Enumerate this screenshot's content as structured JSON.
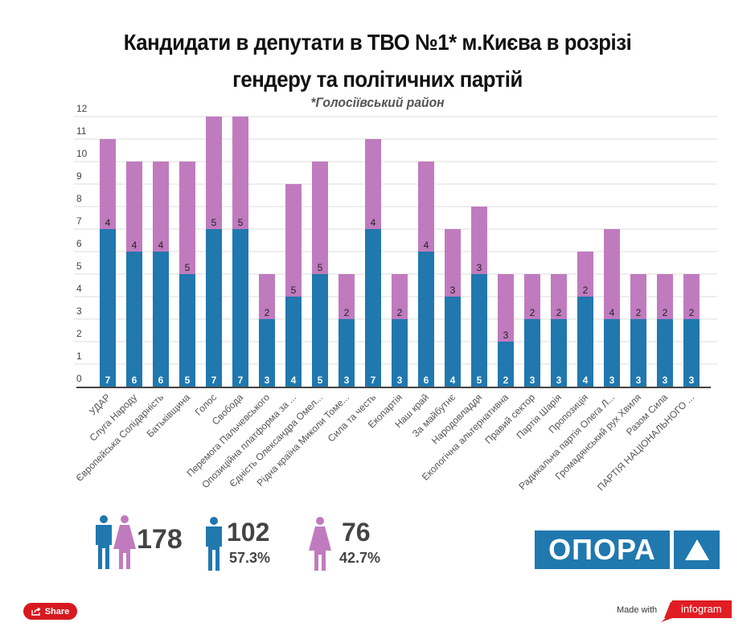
{
  "header": {
    "title_line1": "Кандидати в депутати в ТВО №1* м.Києва в розрізі",
    "title_line2": "гендеру та політичних партій",
    "subtitle": "*Голосіївський район"
  },
  "colors": {
    "male": "#2078ae",
    "female": "#c07bbf",
    "grid": "#dddddd",
    "axis": "#444444",
    "brand": "#2078ae",
    "share": "#d7191f"
  },
  "chart_data": {
    "type": "bar",
    "stacked": true,
    "title": "Кандидати в депутати в ТВО №1* м.Києва в розрізі гендеру та політичних партій",
    "subtitle": "*Голосіївський район",
    "xlabel": "",
    "ylabel": "",
    "ylim": [
      0,
      12
    ],
    "yticks": [
      0,
      1,
      2,
      3,
      4,
      5,
      6,
      7,
      8,
      9,
      10,
      11,
      12
    ],
    "grid": true,
    "categories": [
      "УДАР",
      "Слуга Народу",
      "Європейська Солідарність",
      "Батьківщина",
      "Голос",
      "Свобода",
      "Перемога Пальчевського",
      "Опозиційна платформа за ...",
      "Єдність Олександра Омел...",
      "Рідна країна Миколи Томе...",
      "Сила та честь",
      "Екопартія",
      "Наш край",
      "За майбутнє",
      "Народовладдя",
      "Екологічна альтернативна",
      "Правий сектор",
      "Партія Шарія",
      "Пропозиція",
      "Радикальна партія Олега Л...",
      "Громадянський рух Хвиля",
      "Разом Сила",
      "ПАРТІЯ НАЦІОНАЛЬНОГО ..."
    ],
    "series": [
      {
        "name": "Чоловіки",
        "color": "#2078ae",
        "values": [
          7,
          6,
          6,
          5,
          7,
          7,
          3,
          4,
          5,
          3,
          7,
          3,
          6,
          4,
          5,
          2,
          3,
          3,
          4,
          3,
          3,
          3,
          3
        ]
      },
      {
        "name": "Жінки",
        "color": "#c07bbf",
        "values": [
          4,
          4,
          4,
          5,
          5,
          5,
          2,
          5,
          5,
          2,
          4,
          2,
          4,
          3,
          3,
          3,
          2,
          2,
          2,
          4,
          2,
          2,
          2
        ]
      }
    ]
  },
  "stats": {
    "total": "178",
    "male_count": "102",
    "male_pct": "57.3%",
    "female_count": "76",
    "female_pct": "42.7%"
  },
  "logo": {
    "text": "ОПОРА"
  },
  "footer": {
    "share_label": "Share",
    "made_with": "Made with",
    "brand": "infogram"
  }
}
